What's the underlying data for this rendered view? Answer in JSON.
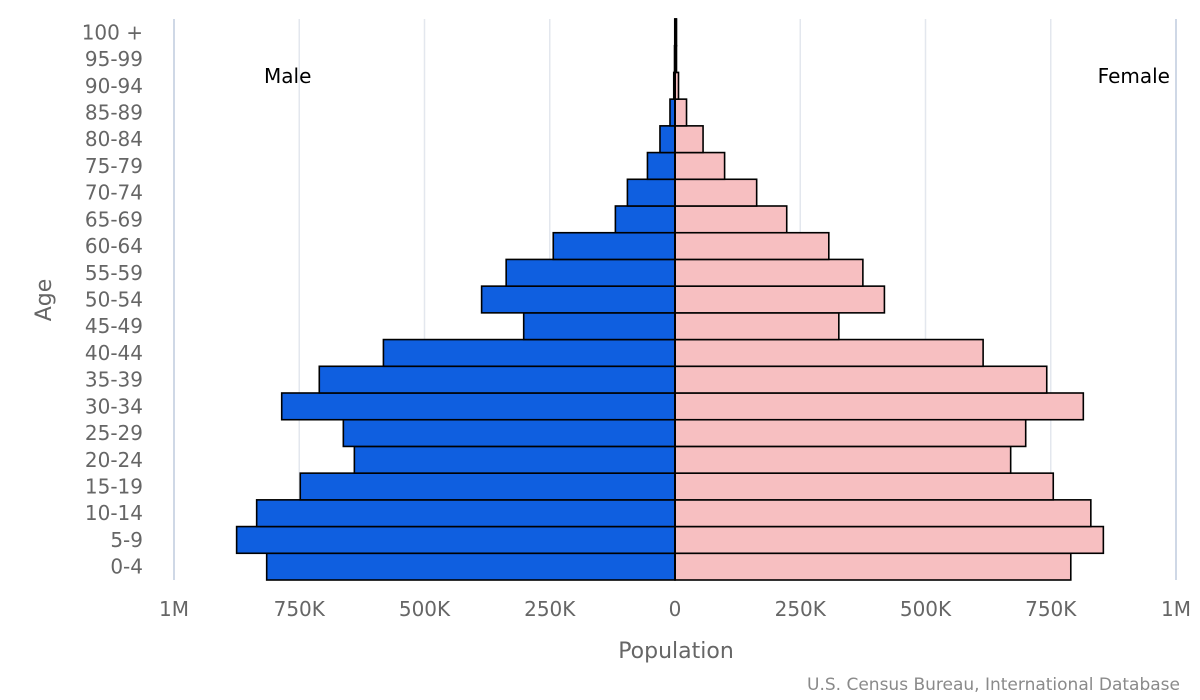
{
  "chart_data": {
    "type": "bar",
    "orientation": "horizontal",
    "subtype": "population-pyramid",
    "xlabel": "Population",
    "ylabel": "Age",
    "xlim": [
      -1000000,
      1000000
    ],
    "x_ticks": [
      -1000000,
      -750000,
      -500000,
      -250000,
      0,
      250000,
      500000,
      750000,
      1000000
    ],
    "x_tick_labels": [
      "1M",
      "750K",
      "500K",
      "250K",
      "0",
      "250K",
      "500K",
      "750K",
      "1M"
    ],
    "categories": [
      "0-4",
      "5-9",
      "10-14",
      "15-19",
      "20-24",
      "25-29",
      "30-34",
      "35-39",
      "40-44",
      "45-49",
      "50-54",
      "55-59",
      "60-64",
      "65-69",
      "70-74",
      "75-79",
      "80-84",
      "85-89",
      "90-94",
      "95-99",
      "100 +"
    ],
    "series": [
      {
        "name": "Male",
        "color": "#0f5fe0",
        "values": [
          815000,
          875000,
          835000,
          748000,
          640000,
          662000,
          785000,
          710000,
          582000,
          302000,
          386000,
          337000,
          243000,
          119000,
          95000,
          55000,
          30000,
          10000,
          2500,
          1000,
          500
        ]
      },
      {
        "name": "Female",
        "color": "#f7bfc1",
        "values": [
          790000,
          855000,
          830000,
          755000,
          670000,
          700000,
          815000,
          742000,
          615000,
          327000,
          418000,
          375000,
          307000,
          223000,
          163000,
          99000,
          56000,
          23000,
          7000,
          2000,
          800
        ]
      }
    ],
    "grid": true,
    "legend": "inline-top",
    "source": "U.S. Census Bureau, International Database"
  }
}
